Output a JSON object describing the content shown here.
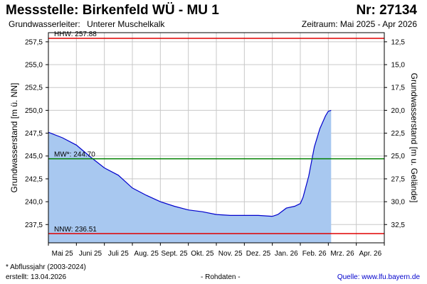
{
  "header": {
    "title": "Messstelle: Birkenfeld WÜ - MU 1",
    "number": "Nr: 27134",
    "aquifer_label": "Grundwasserleiter:",
    "aquifer_value": "Unterer Muschelkalk",
    "period": "Zeitraum: Mai 2025 - Apr 2026"
  },
  "footer": {
    "note": "* Abflussjahr (2003-2024)",
    "created": "erstellt:  13.04.2026",
    "raw": "- Rohdaten -",
    "source": "Quelle: www.lfu.bayern.de"
  },
  "colors": {
    "fill": "#a8c8f0",
    "line": "#0000cc",
    "hhw": "#e00000",
    "mw": "#008000",
    "nnw": "#e00000",
    "grid": "#c8c8c8"
  },
  "chart_data": {
    "type": "area",
    "ylabel": "Grundwasserstand [m ü. NN]",
    "ylabel_right": "Grundwasserstand [m u. Gelände]",
    "ylim": [
      235.5,
      258.5
    ],
    "yticks": [
      237.5,
      240.0,
      242.5,
      245.0,
      247.5,
      250.0,
      252.5,
      255.0,
      257.5
    ],
    "ytick_labels": [
      "237,5",
      "240,0",
      "242,5",
      "245,0",
      "247,5",
      "250,0",
      "252,5",
      "255,0",
      "257,5"
    ],
    "y2_ticks": [
      12.5,
      15.0,
      17.5,
      20.0,
      22.5,
      25.0,
      27.5,
      30.0,
      32.5
    ],
    "y2_tick_labels": [
      "12,5",
      "15,0",
      "17,5",
      "20,0",
      "22,5",
      "25,0",
      "27,5",
      "30,0",
      "32,5"
    ],
    "y2_offset": 270.0,
    "xlim": [
      0,
      12
    ],
    "x_unit": "months since start of Mai 25",
    "categories": [
      "Mai 25",
      "Juni 25",
      "Juli 25",
      "Aug. 25",
      "Sept. 25",
      "Okt. 25",
      "Nov. 25",
      "Dez. 25",
      "Jan. 26",
      "Feb. 26",
      "Mrz. 26",
      "Apr. 26"
    ],
    "grid": true,
    "reference_lines": [
      {
        "name": "HHW",
        "label": "HHW: 257.88",
        "value": 257.88,
        "color_key": "hhw"
      },
      {
        "name": "MW",
        "label": "MW*: 244.70",
        "value": 244.7,
        "color_key": "mw"
      },
      {
        "name": "NNW",
        "label": "NNW: 236.51",
        "value": 236.51,
        "color_key": "nnw"
      }
    ],
    "series": [
      {
        "x": [
          0,
          0.5,
          1.0,
          1.5,
          2.0,
          2.5,
          3.0,
          3.5,
          4.0,
          4.5,
          5.0,
          5.5,
          6.0,
          6.5,
          7.0,
          7.5,
          8.0,
          8.2,
          8.5,
          8.8,
          9.0,
          9.1,
          9.3,
          9.5,
          9.7,
          9.9,
          10.0,
          10.1
        ],
        "y": [
          247.6,
          247.0,
          246.2,
          244.9,
          243.7,
          242.9,
          241.5,
          240.7,
          240.0,
          239.5,
          239.1,
          238.9,
          238.6,
          238.5,
          238.5,
          238.5,
          238.4,
          238.6,
          239.3,
          239.5,
          239.8,
          240.5,
          242.8,
          246.0,
          248.0,
          249.4,
          249.9,
          250.0
        ]
      }
    ]
  }
}
